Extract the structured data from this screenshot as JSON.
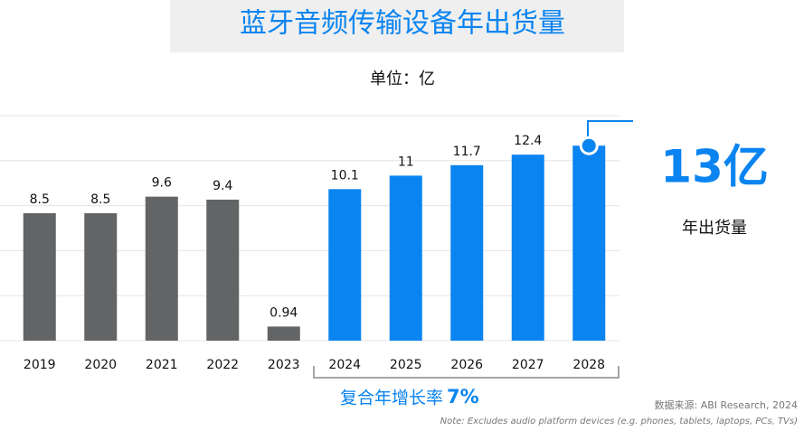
{
  "chart_data": {
    "type": "bar",
    "title": "蓝牙音频传输设备年出货量",
    "subtitle": "单位：亿",
    "categories": [
      "2019",
      "2020",
      "2021",
      "2022",
      "2023",
      "2024",
      "2025",
      "2026",
      "2027",
      "2028"
    ],
    "values": [
      8.5,
      8.5,
      9.6,
      9.4,
      0.94,
      10.1,
      11,
      11.7,
      12.4,
      13
    ],
    "value_labels": [
      "8.5",
      "8.5",
      "9.6",
      "9.4",
      "0.94",
      "10.1",
      "11",
      "11.7",
      "12.4",
      null
    ],
    "colors": [
      "#636466",
      "#636466",
      "#636466",
      "#636466",
      "#636466",
      "#0a84f0",
      "#0a84f0",
      "#0a84f0",
      "#0a84f0",
      "#0a84f0"
    ],
    "ylim": [
      0,
      15
    ],
    "yticks": [
      0,
      3,
      6,
      9,
      12,
      15
    ],
    "grid": true,
    "callout": {
      "text": "13亿",
      "label": "年出货量"
    },
    "cagr": {
      "label": "复合年增长率",
      "value": "7%"
    },
    "source": "数据来源: ABI Research, 2024",
    "note": "Note: Excludes audio platform devices (e.g. phones, tablets, laptops, PCs, TVs)"
  }
}
